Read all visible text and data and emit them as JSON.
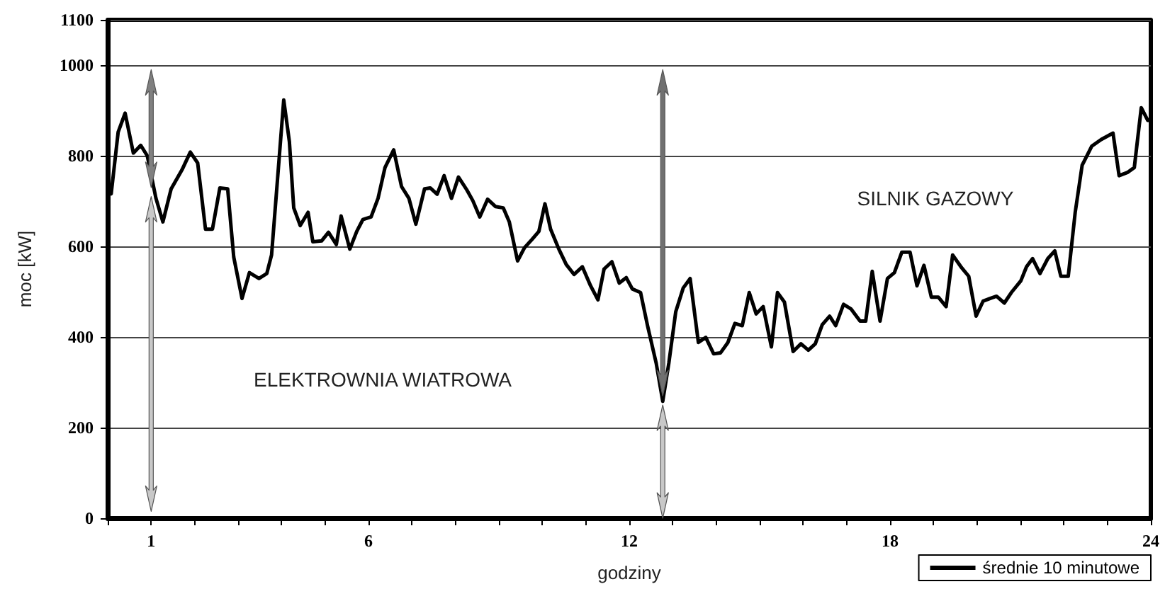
{
  "chart_data": {
    "type": "line",
    "xlabel": "godziny",
    "ylabel": "moc [kW]",
    "xlim": [
      0,
      24
    ],
    "ylim": [
      0,
      1100
    ],
    "xticks": [
      {
        "value": 0,
        "label": null
      },
      1,
      {
        "value": 2,
        "label": null
      },
      {
        "value": 3,
        "label": null
      },
      {
        "value": 4,
        "label": null
      },
      {
        "value": 5,
        "label": null
      },
      6,
      {
        "value": 7,
        "label": null
      },
      {
        "value": 8,
        "label": null
      },
      {
        "value": 9,
        "label": null
      },
      {
        "value": 10,
        "label": null
      },
      {
        "value": 11,
        "label": null
      },
      12,
      {
        "value": 13,
        "label": null
      },
      {
        "value": 14,
        "label": null
      },
      {
        "value": 15,
        "label": null
      },
      {
        "value": 16,
        "label": null
      },
      {
        "value": 17,
        "label": null
      },
      18,
      {
        "value": 19,
        "label": null
      },
      {
        "value": 20,
        "label": null
      },
      {
        "value": 21,
        "label": null
      },
      {
        "value": 22,
        "label": null
      },
      {
        "value": 23,
        "label": null
      },
      24
    ],
    "yticks": [
      0,
      200,
      400,
      600,
      800,
      1000,
      1100
    ],
    "grid": "y",
    "legend": "bottom right",
    "marker": "none",
    "line_style": "solid",
    "annotations": [
      "ELEKTROWNIA WIATROWA",
      "SILNIK GAZOWY"
    ],
    "series": [
      {
        "name": "średnie 10 minutowe",
        "color": "#000000",
        "x": [
          0,
          0.08,
          0.24,
          0.4,
          0.59,
          0.76,
          0.91,
          1.11,
          1.27,
          1.46,
          1.71,
          1.9,
          2.07,
          2.25,
          2.41,
          2.58,
          2.76,
          2.9,
          3.09,
          3.26,
          3.48,
          3.66,
          3.77,
          4.05,
          4.18,
          4.28,
          4.43,
          4.61,
          4.72,
          4.92,
          5.08,
          5.26,
          5.37,
          5.57,
          5.73,
          5.87,
          6.06,
          6.22,
          6.38,
          6.58,
          6.76,
          6.93,
          7.09,
          7.29,
          7.42,
          7.58,
          7.74,
          7.91,
          8.07,
          8.26,
          8.4,
          8.56,
          8.74,
          8.92,
          9.1,
          9.24,
          9.43,
          9.59,
          9.76,
          9.92,
          10.06,
          10.19,
          10.38,
          10.55,
          10.73,
          10.92,
          11.11,
          11.28,
          11.42,
          11.6,
          11.77,
          11.93,
          12.07,
          12.26,
          12.42,
          12.62,
          12.77,
          12.91,
          13.07,
          13.24,
          13.4,
          13.59,
          13.76,
          13.94,
          14.1,
          14.27,
          14.43,
          14.6,
          14.76,
          14.92,
          15.08,
          15.27,
          15.41,
          15.57,
          15.77,
          15.95,
          16.12,
          16.28,
          16.44,
          16.61,
          16.75,
          16.93,
          17.1,
          17.31,
          17.44,
          17.59,
          17.77,
          17.94,
          18.1,
          18.27,
          18.46,
          18.62,
          18.78,
          18.95,
          19.11,
          19.29,
          19.44,
          19.63,
          19.81,
          19.98,
          20.14,
          20.3,
          20.45,
          20.63,
          20.79,
          21.01,
          21.14,
          21.28,
          21.45,
          21.63,
          21.79,
          21.93,
          22.1,
          22.26,
          22.42,
          22.64,
          22.86,
          23.13,
          23.27,
          23.46,
          23.62,
          23.78,
          23.93,
          24
        ],
        "values": [
          728,
          716,
          852,
          894,
          806,
          823,
          800,
          706,
          654,
          727,
          769,
          808,
          784,
          638,
          638,
          729,
          727,
          576,
          485,
          542,
          529,
          540,
          581,
          923,
          831,
          685,
          646,
          675,
          610,
          612,
          631,
          604,
          667,
          594,
          633,
          659,
          665,
          706,
          774,
          813,
          732,
          706,
          649,
          727,
          729,
          715,
          756,
          706,
          753,
          725,
          701,
          665,
          704,
          688,
          685,
          654,
          568,
          597,
          615,
          633,
          694,
          638,
          594,
          560,
          538,
          555,
          513,
          482,
          550,
          566,
          519,
          531,
          506,
          498,
          425,
          342,
          258,
          342,
          456,
          508,
          529,
          388,
          399,
          363,
          365,
          388,
          430,
          425,
          498,
          451,
          467,
          378,
          498,
          477,
          368,
          385,
          371,
          385,
          427,
          446,
          425,
          472,
          462,
          435,
          435,
          545,
          435,
          529,
          542,
          587,
          587,
          513,
          558,
          488,
          488,
          467,
          581,
          555,
          534,
          446,
          479,
          485,
          490,
          475,
          498,
          524,
          555,
          573,
          540,
          573,
          590,
          534,
          534,
          675,
          779,
          821,
          836,
          850,
          756,
          763,
          774,
          906,
          878,
          878
        ]
      }
    ]
  }
}
